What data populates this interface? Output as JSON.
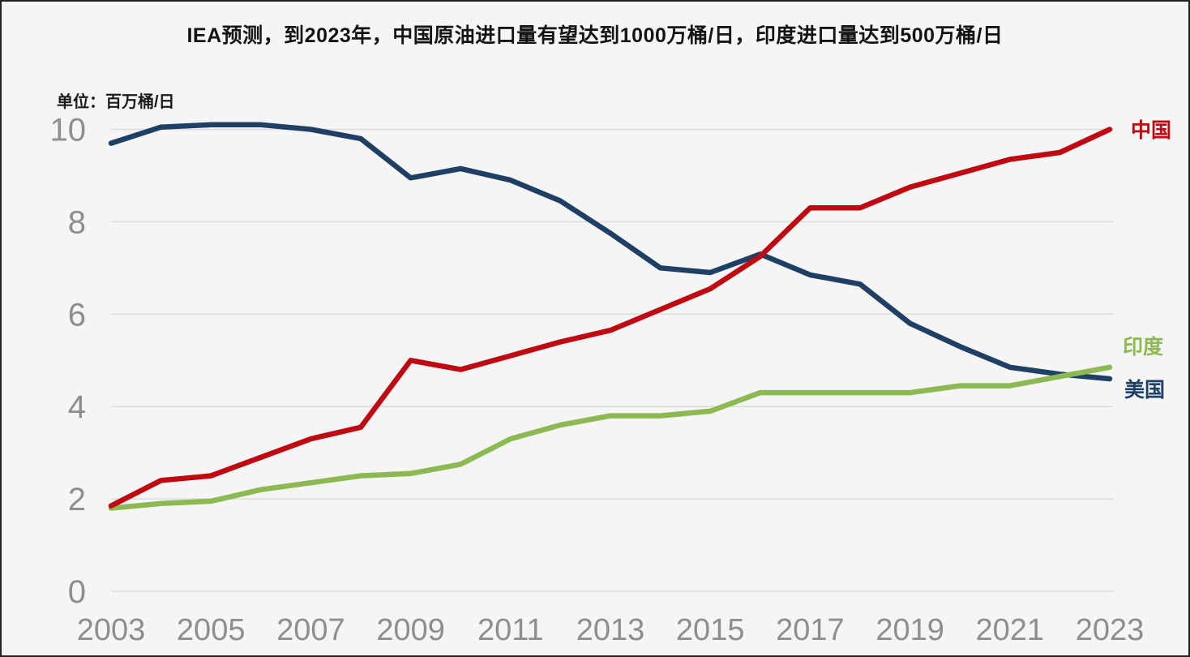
{
  "title": "IEA预测，到2023年，中国原油进口量有望达到1000万桶/日，印度进口量达到500万桶/日",
  "unit_label": "单位：百万桶/日",
  "colors": {
    "china": "#c00a11",
    "india": "#8db952",
    "usa": "#1f4064",
    "tick_text": "#8e8e8e",
    "gridline": "#dcdcdc",
    "background": "#f5f5f6",
    "title_text": "#141414"
  },
  "chart_data": {
    "type": "line",
    "title": "IEA预测，到2023年，中国原油进口量有望达到1000万桶/日，印度进口量达到500万桶/日",
    "ylabel": "单位：百万桶/日",
    "xlabel": "",
    "x": [
      2003,
      2004,
      2005,
      2006,
      2007,
      2008,
      2009,
      2010,
      2011,
      2012,
      2013,
      2014,
      2015,
      2016,
      2017,
      2018,
      2019,
      2020,
      2021,
      2022,
      2023
    ],
    "series": [
      {
        "id": "usa",
        "name": "美国",
        "color": "#1f4064",
        "values": [
          9.7,
          10.05,
          10.1,
          10.1,
          10.0,
          9.8,
          8.95,
          9.15,
          8.9,
          8.45,
          7.75,
          7.0,
          6.9,
          7.3,
          6.85,
          6.65,
          5.8,
          5.3,
          4.85,
          4.7,
          4.6
        ]
      },
      {
        "id": "india",
        "name": "印度",
        "color": "#8db952",
        "values": [
          1.8,
          1.9,
          1.95,
          2.2,
          2.35,
          2.5,
          2.55,
          2.75,
          3.3,
          3.6,
          3.8,
          3.8,
          3.9,
          4.3,
          4.3,
          4.3,
          4.3,
          4.45,
          4.45,
          4.65,
          4.85
        ]
      },
      {
        "id": "china",
        "name": "中国",
        "color": "#c00a11",
        "values": [
          1.85,
          2.4,
          2.5,
          2.9,
          3.3,
          3.55,
          5.0,
          4.8,
          5.1,
          5.4,
          5.65,
          6.1,
          6.55,
          7.25,
          8.3,
          8.3,
          8.75,
          9.05,
          9.35,
          9.5,
          10.0
        ]
      }
    ],
    "ylim": [
      0,
      10
    ],
    "yticks": [
      0,
      2,
      4,
      6,
      8,
      10
    ],
    "xticks": [
      2003,
      2005,
      2007,
      2009,
      2011,
      2013,
      2015,
      2017,
      2019,
      2021,
      2023
    ],
    "grid": "horizontal",
    "legend_position": "right-of-line-ends"
  }
}
